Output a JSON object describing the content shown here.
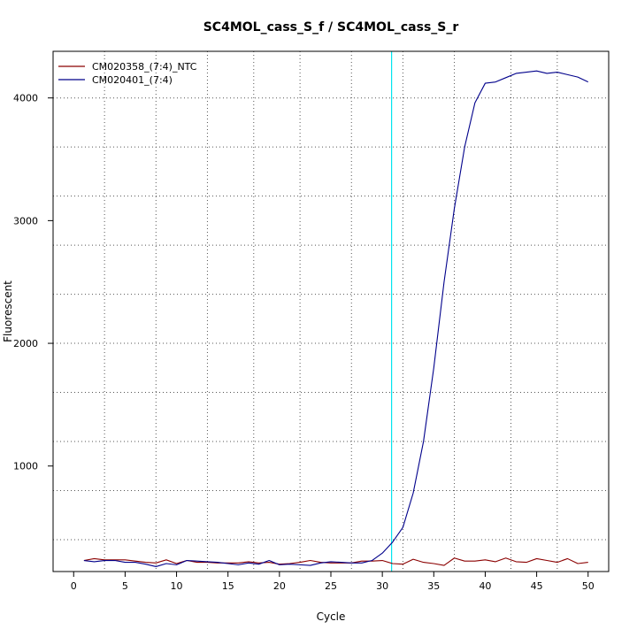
{
  "chart_data": {
    "type": "line",
    "title": "SC4MOL_cass_S_f / SC4MOL_cass_S_r",
    "xlabel": "Cycle",
    "ylabel": "Fluorescent",
    "xlim": [
      -2,
      52
    ],
    "ylim": [
      140,
      4380
    ],
    "x_ticks": [
      0,
      5,
      10,
      15,
      20,
      25,
      30,
      35,
      40,
      45,
      50
    ],
    "y_ticks": [
      1000,
      2000,
      3000,
      4000
    ],
    "x_grid": [
      3,
      8,
      13,
      17.5,
      22,
      27,
      32,
      37,
      42.5,
      47
    ],
    "y_grid": [
      400,
      800,
      1200,
      1600,
      2000,
      2400,
      2800,
      3200,
      3600,
      4000
    ],
    "grid": true,
    "legend_position": "top-left",
    "threshold_line": {
      "x": 30.9,
      "color": "#00e5ee"
    },
    "series": [
      {
        "name": "CM020358_(7:4)_NTC",
        "color": "#8b0000",
        "x": [
          1,
          2,
          3,
          4,
          5,
          6,
          7,
          8,
          9,
          10,
          11,
          12,
          13,
          14,
          15,
          16,
          17,
          18,
          19,
          20,
          21,
          22,
          23,
          24,
          25,
          26,
          27,
          28,
          29,
          30,
          31,
          32,
          33,
          34,
          35,
          36,
          37,
          38,
          39,
          40,
          41,
          42,
          43,
          44,
          45,
          46,
          47,
          48,
          49,
          50
        ],
        "values": [
          230,
          245,
          235,
          235,
          235,
          225,
          215,
          210,
          235,
          205,
          230,
          215,
          215,
          210,
          210,
          210,
          220,
          210,
          215,
          200,
          205,
          215,
          230,
          215,
          210,
          210,
          210,
          225,
          225,
          230,
          205,
          200,
          240,
          215,
          205,
          190,
          250,
          225,
          225,
          235,
          220,
          250,
          220,
          215,
          245,
          230,
          215,
          245,
          205,
          215
        ]
      },
      {
        "name": "CM020401_(7:4)",
        "color": "#00008b",
        "x": [
          1,
          2,
          3,
          4,
          5,
          6,
          7,
          8,
          9,
          10,
          11,
          12,
          13,
          14,
          15,
          16,
          17,
          18,
          19,
          20,
          21,
          22,
          23,
          24,
          25,
          26,
          27,
          28,
          29,
          30,
          31,
          32,
          33,
          34,
          35,
          36,
          37,
          38,
          39,
          40,
          41,
          42,
          43,
          44,
          45,
          46,
          47,
          48,
          49,
          50
        ],
        "values": [
          230,
          220,
          230,
          230,
          215,
          215,
          200,
          180,
          205,
          195,
          230,
          225,
          220,
          215,
          205,
          195,
          210,
          200,
          230,
          195,
          200,
          195,
          190,
          210,
          220,
          215,
          210,
          210,
          230,
          290,
          380,
          500,
          780,
          1200,
          1800,
          2500,
          3100,
          3600,
          3960,
          4120,
          4130,
          4165,
          4200,
          4210,
          4220,
          4200,
          4210,
          4190,
          4170,
          4130
        ]
      }
    ]
  }
}
